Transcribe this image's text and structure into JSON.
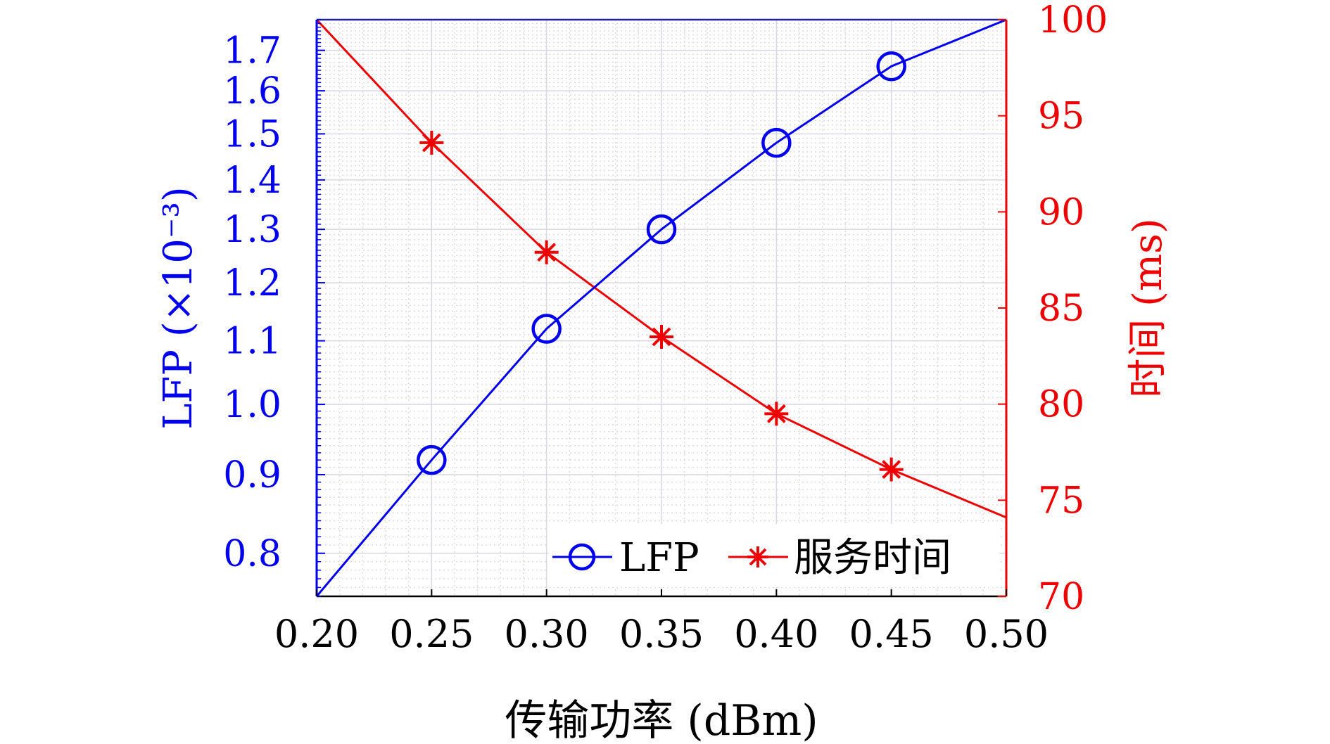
{
  "chart_data": {
    "type": "line",
    "xlabel": "传输功率 (dBm)",
    "x_ticks": [
      "0.20",
      "0.25",
      "0.30",
      "0.35",
      "0.40",
      "0.45",
      "0.50"
    ],
    "xlim": [
      0.2,
      0.5
    ],
    "y_left": {
      "label": "LFP (×10⁻³)",
      "scale": "log",
      "ticks": [
        "0.8",
        "0.9",
        "1.0",
        "1.1",
        "1.2",
        "1.3",
        "1.4",
        "1.5",
        "1.6",
        "1.7"
      ],
      "ylim": [
        0.75,
        1.78
      ],
      "color": "#0000ee"
    },
    "y_right": {
      "label": "时间 (ms)",
      "scale": "linear",
      "ticks": [
        "70",
        "75",
        "80",
        "85",
        "90",
        "95",
        "100"
      ],
      "ylim": [
        70,
        100
      ],
      "color": "#ee0000"
    },
    "series": [
      {
        "name": "LFP",
        "axis": "left",
        "color": "#0000ee",
        "marker": "circle",
        "x": [
          0.2,
          0.25,
          0.3,
          0.35,
          0.4,
          0.45,
          0.5
        ],
        "y": [
          0.75,
          0.92,
          1.12,
          1.3,
          1.48,
          1.66,
          1.78
        ],
        "marked": [
          false,
          true,
          true,
          true,
          true,
          true,
          false
        ]
      },
      {
        "name": "服务时间",
        "axis": "right",
        "color": "#ee0000",
        "marker": "asterisk",
        "x": [
          0.2,
          0.25,
          0.3,
          0.35,
          0.4,
          0.45,
          0.5
        ],
        "y": [
          100,
          93.6,
          87.9,
          83.5,
          79.5,
          76.6,
          74.1
        ],
        "marked": [
          false,
          true,
          true,
          true,
          true,
          true,
          false
        ]
      }
    ],
    "legend": {
      "location": "bottom-right",
      "orientation": "horizontal"
    },
    "grid": true,
    "minor_grid": true
  }
}
